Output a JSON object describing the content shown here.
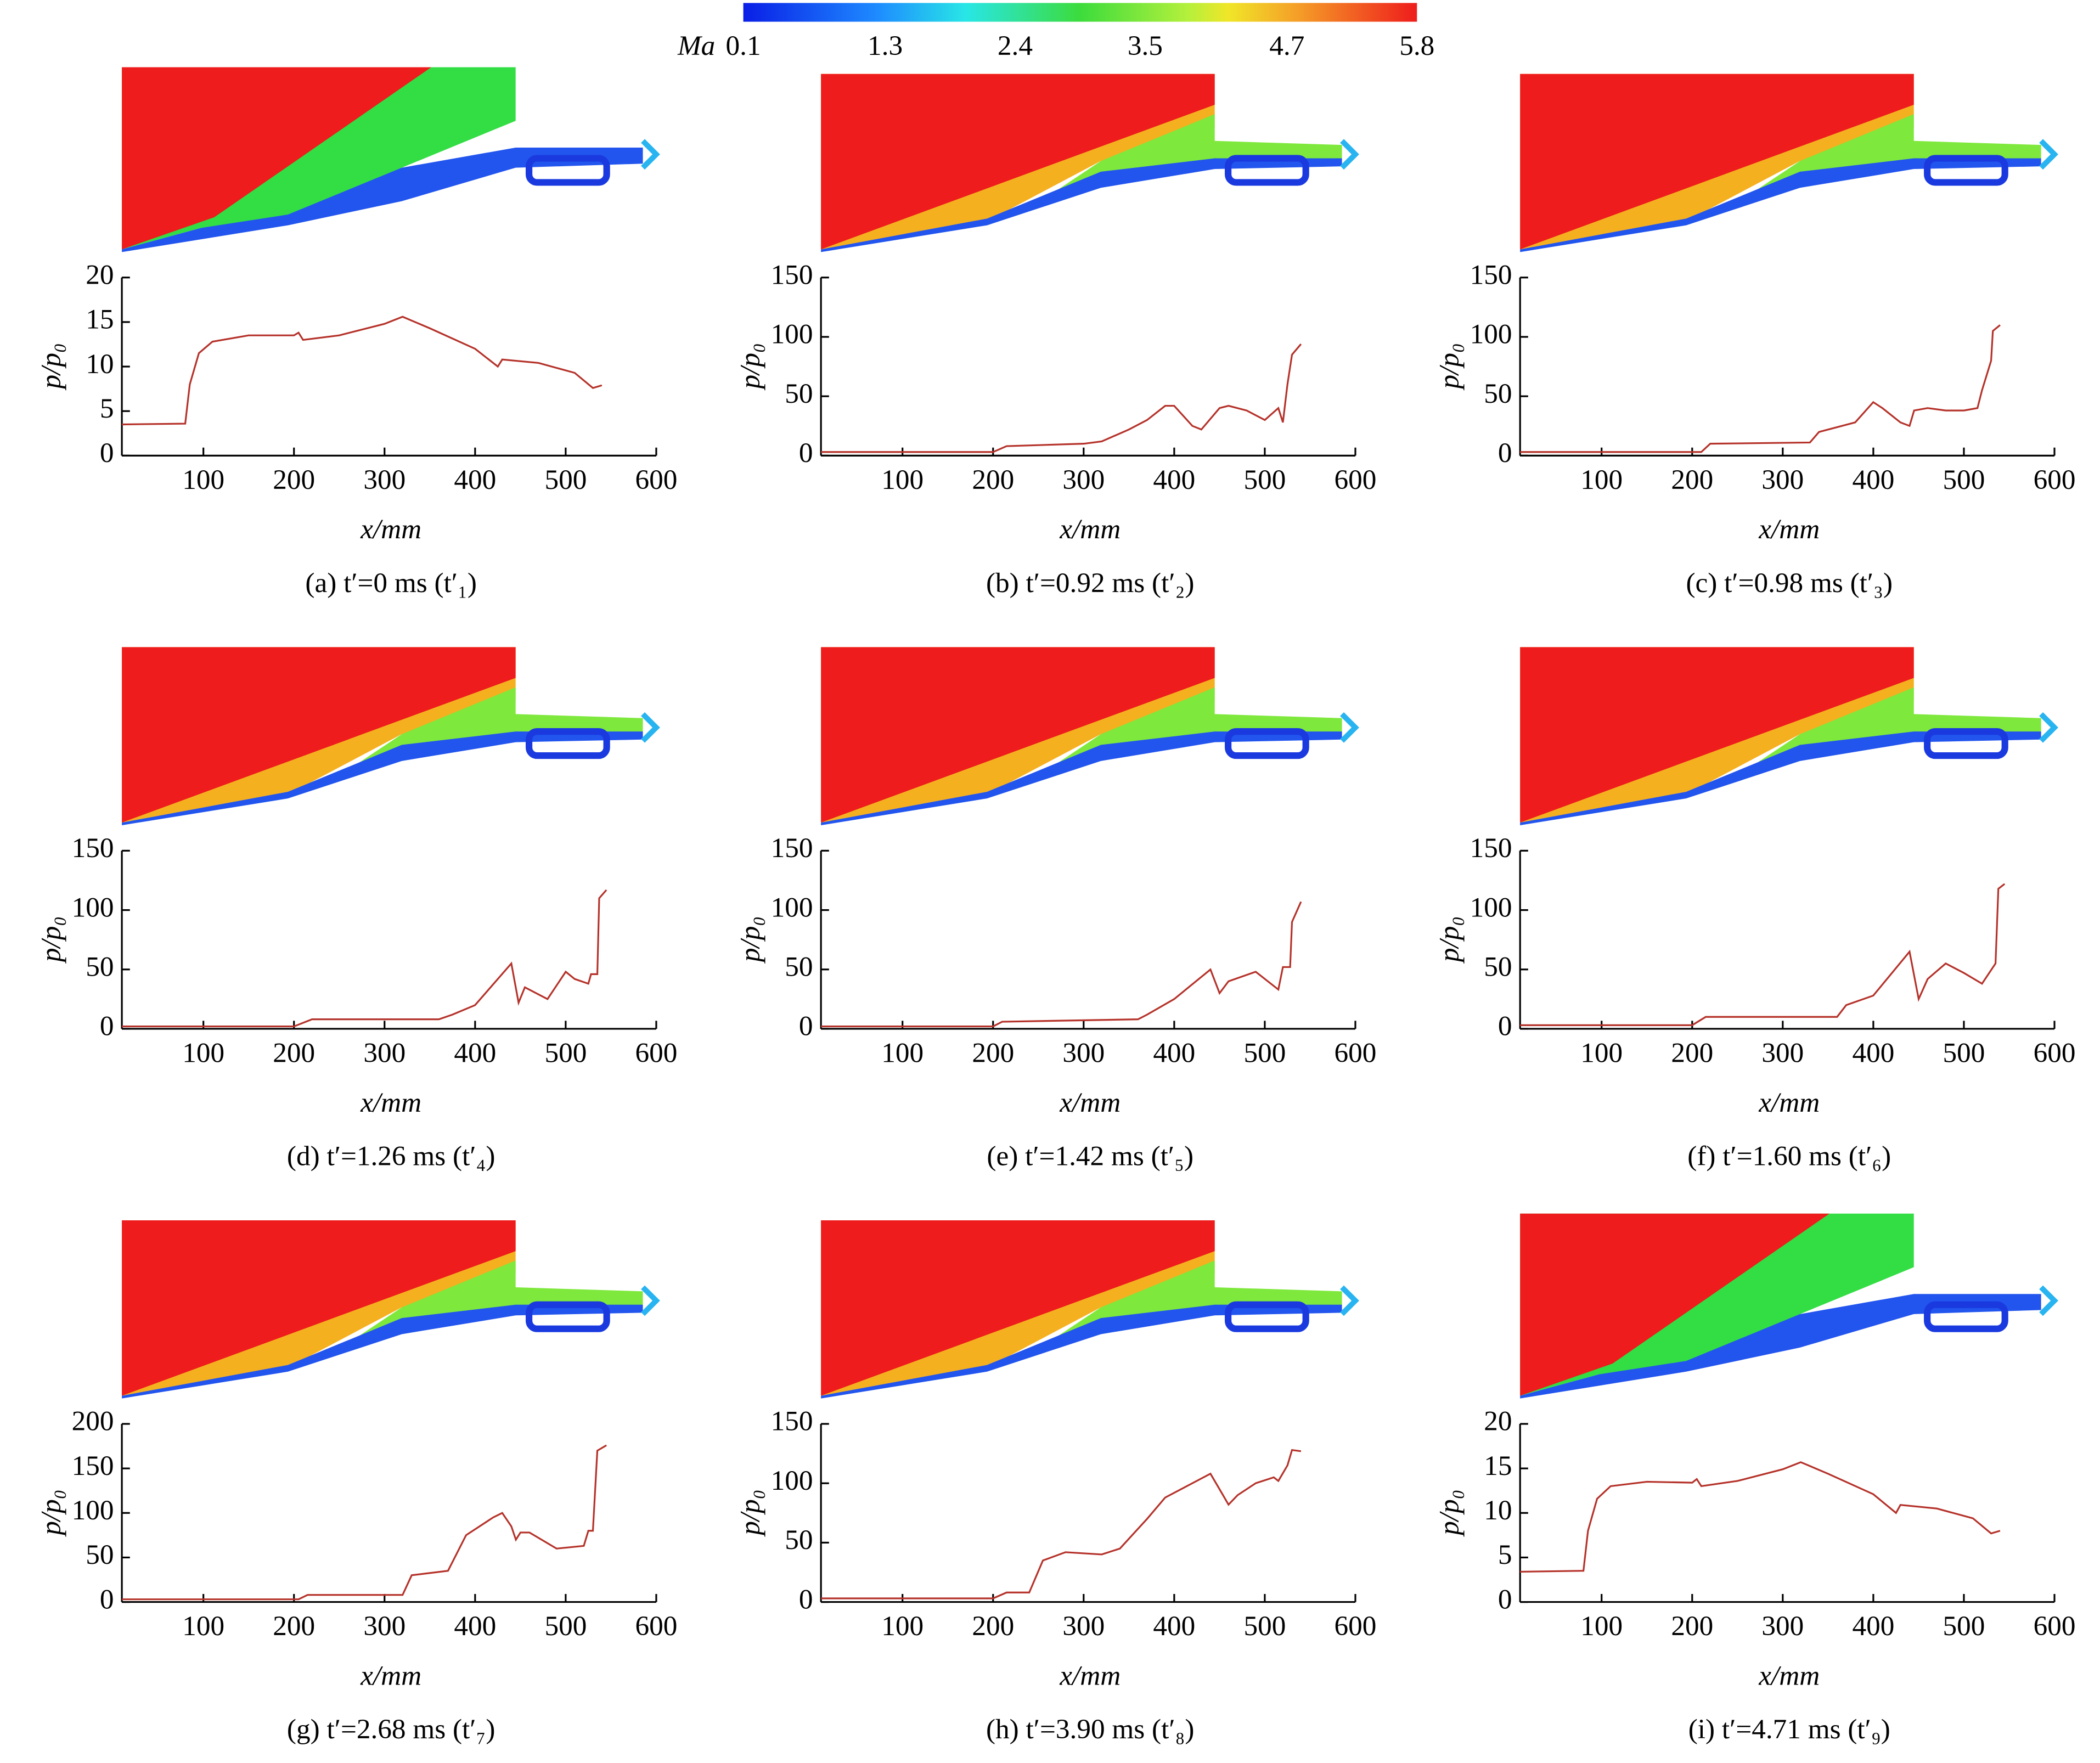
{
  "colorbar": {
    "label": "Ma",
    "ticks": [
      0.1,
      1.3,
      2.4,
      3.5,
      4.7,
      5.8
    ]
  },
  "chart_data": [
    {
      "type": "line",
      "caption": "(a) t′=0 ms (t′₁)",
      "xlabel": "x/mm",
      "ylabel": "p/p₀",
      "color": "#b5322a",
      "xlim": [
        10,
        600
      ],
      "ylim": [
        0,
        20
      ],
      "xticks": [
        100,
        200,
        300,
        400,
        500,
        600
      ],
      "yticks": [
        0,
        5,
        10,
        15,
        20
      ],
      "x": [
        10,
        80,
        85,
        95,
        110,
        150,
        200,
        205,
        210,
        250,
        300,
        320,
        350,
        400,
        425,
        430,
        470,
        510,
        530,
        540
      ],
      "values": [
        3.5,
        3.6,
        8,
        11.5,
        12.8,
        13.5,
        13.5,
        13.8,
        13,
        13.5,
        14.8,
        15.6,
        14.3,
        12,
        10,
        10.8,
        10.4,
        9.3,
        7.6,
        7.9
      ]
    },
    {
      "type": "line",
      "caption": "(b) t′=0.92 ms (t′₂)",
      "xlabel": "x/mm",
      "ylabel": "p/p₀",
      "color": "#b5322a",
      "xlim": [
        10,
        600
      ],
      "ylim": [
        0,
        150
      ],
      "xticks": [
        100,
        200,
        300,
        400,
        500,
        600
      ],
      "yticks": [
        0,
        50,
        100,
        150
      ],
      "x": [
        10,
        200,
        215,
        300,
        320,
        350,
        370,
        390,
        400,
        420,
        430,
        450,
        460,
        480,
        500,
        515,
        520,
        525,
        530,
        540
      ],
      "values": [
        3,
        3,
        8,
        10,
        12,
        22,
        30,
        42,
        42,
        25,
        22,
        40,
        42,
        38,
        30,
        40,
        28,
        60,
        85,
        94
      ]
    },
    {
      "type": "line",
      "caption": "(c) t′=0.98 ms (t′₃)",
      "xlabel": "x/mm",
      "ylabel": "p/p₀",
      "color": "#b5322a",
      "xlim": [
        10,
        600
      ],
      "ylim": [
        0,
        150
      ],
      "xticks": [
        100,
        200,
        300,
        400,
        500,
        600
      ],
      "yticks": [
        0,
        50,
        100,
        150
      ],
      "x": [
        10,
        210,
        220,
        330,
        340,
        380,
        400,
        410,
        430,
        440,
        445,
        460,
        480,
        500,
        515,
        520,
        530,
        532,
        540
      ],
      "values": [
        3,
        3,
        10,
        11,
        20,
        28,
        45,
        40,
        28,
        25,
        38,
        40,
        38,
        38,
        40,
        55,
        80,
        105,
        110
      ]
    },
    {
      "type": "line",
      "caption": "(d) t′=1.26 ms (t′₄)",
      "xlabel": "x/mm",
      "ylabel": "p/p₀",
      "color": "#b5322a",
      "xlim": [
        10,
        600
      ],
      "ylim": [
        0,
        150
      ],
      "xticks": [
        100,
        200,
        300,
        400,
        500,
        600
      ],
      "yticks": [
        0,
        50,
        100,
        150
      ],
      "x": [
        10,
        200,
        220,
        360,
        375,
        400,
        440,
        448,
        455,
        480,
        500,
        510,
        525,
        528,
        535,
        537,
        545
      ],
      "values": [
        2,
        2,
        8,
        8,
        12,
        20,
        55,
        22,
        35,
        25,
        48,
        42,
        38,
        46,
        46,
        110,
        117
      ]
    },
    {
      "type": "line",
      "caption": "(e) t′=1.42 ms (t′₅)",
      "xlabel": "x/mm",
      "ylabel": "p/p₀",
      "color": "#b5322a",
      "xlim": [
        10,
        600
      ],
      "ylim": [
        0,
        150
      ],
      "xticks": [
        100,
        200,
        300,
        400,
        500,
        600
      ],
      "yticks": [
        0,
        50,
        100,
        150
      ],
      "x": [
        10,
        200,
        210,
        360,
        370,
        400,
        440,
        450,
        460,
        490,
        515,
        520,
        528,
        530,
        540
      ],
      "values": [
        2,
        2,
        6,
        8,
        12,
        25,
        50,
        30,
        40,
        48,
        33,
        52,
        52,
        90,
        107
      ]
    },
    {
      "type": "line",
      "caption": "(f) t′=1.60 ms (t′₆)",
      "xlabel": "x/mm",
      "ylabel": "p/p₀",
      "color": "#b5322a",
      "xlim": [
        10,
        600
      ],
      "ylim": [
        0,
        150
      ],
      "xticks": [
        100,
        200,
        300,
        400,
        500,
        600
      ],
      "yticks": [
        0,
        50,
        100,
        150
      ],
      "x": [
        10,
        200,
        215,
        360,
        370,
        400,
        440,
        450,
        460,
        480,
        500,
        520,
        535,
        538,
        545
      ],
      "values": [
        3,
        3,
        10,
        10,
        20,
        28,
        65,
        25,
        42,
        55,
        47,
        38,
        55,
        118,
        122
      ]
    },
    {
      "type": "line",
      "caption": "(g) t′=2.68 ms (t′₇)",
      "xlabel": "x/mm",
      "ylabel": "p/p₀",
      "color": "#b5322a",
      "xlim": [
        10,
        600
      ],
      "ylim": [
        0,
        200
      ],
      "xticks": [
        100,
        200,
        300,
        400,
        500,
        600
      ],
      "yticks": [
        0,
        50,
        100,
        150,
        200
      ],
      "x": [
        10,
        205,
        215,
        320,
        330,
        370,
        390,
        420,
        430,
        440,
        445,
        450,
        460,
        490,
        520,
        525,
        530,
        535,
        545
      ],
      "values": [
        3,
        3,
        8,
        8,
        30,
        35,
        75,
        95,
        100,
        85,
        70,
        78,
        78,
        60,
        63,
        80,
        80,
        170,
        176
      ]
    },
    {
      "type": "line",
      "caption": "(h) t′=3.90 ms (t′₈)",
      "xlabel": "x/mm",
      "ylabel": "p/p₀",
      "color": "#b5322a",
      "xlim": [
        10,
        600
      ],
      "ylim": [
        0,
        150
      ],
      "xticks": [
        100,
        200,
        300,
        400,
        500,
        600
      ],
      "yticks": [
        0,
        50,
        100,
        150
      ],
      "x": [
        10,
        200,
        215,
        240,
        255,
        280,
        320,
        340,
        370,
        390,
        420,
        440,
        450,
        460,
        470,
        490,
        510,
        515,
        525,
        530,
        540
      ],
      "values": [
        3,
        3,
        8,
        8,
        35,
        42,
        40,
        45,
        70,
        88,
        100,
        108,
        95,
        82,
        90,
        100,
        105,
        102,
        115,
        128,
        127
      ]
    },
    {
      "type": "line",
      "caption": "(i) t′=4.71 ms (t′₉)",
      "xlabel": "x/mm",
      "ylabel": "p/p₀",
      "color": "#b5322a",
      "xlim": [
        10,
        600
      ],
      "ylim": [
        0,
        20
      ],
      "xticks": [
        100,
        200,
        300,
        400,
        500,
        600
      ],
      "yticks": [
        0,
        5,
        10,
        15,
        20
      ],
      "x": [
        10,
        80,
        85,
        95,
        110,
        150,
        200,
        205,
        210,
        250,
        300,
        320,
        350,
        400,
        425,
        430,
        470,
        510,
        530,
        540
      ],
      "values": [
        3.4,
        3.5,
        8,
        11.6,
        13,
        13.5,
        13.4,
        13.8,
        13,
        13.6,
        14.9,
        15.7,
        14.4,
        12.1,
        10,
        10.9,
        10.5,
        9.4,
        7.7,
        8
      ]
    }
  ]
}
